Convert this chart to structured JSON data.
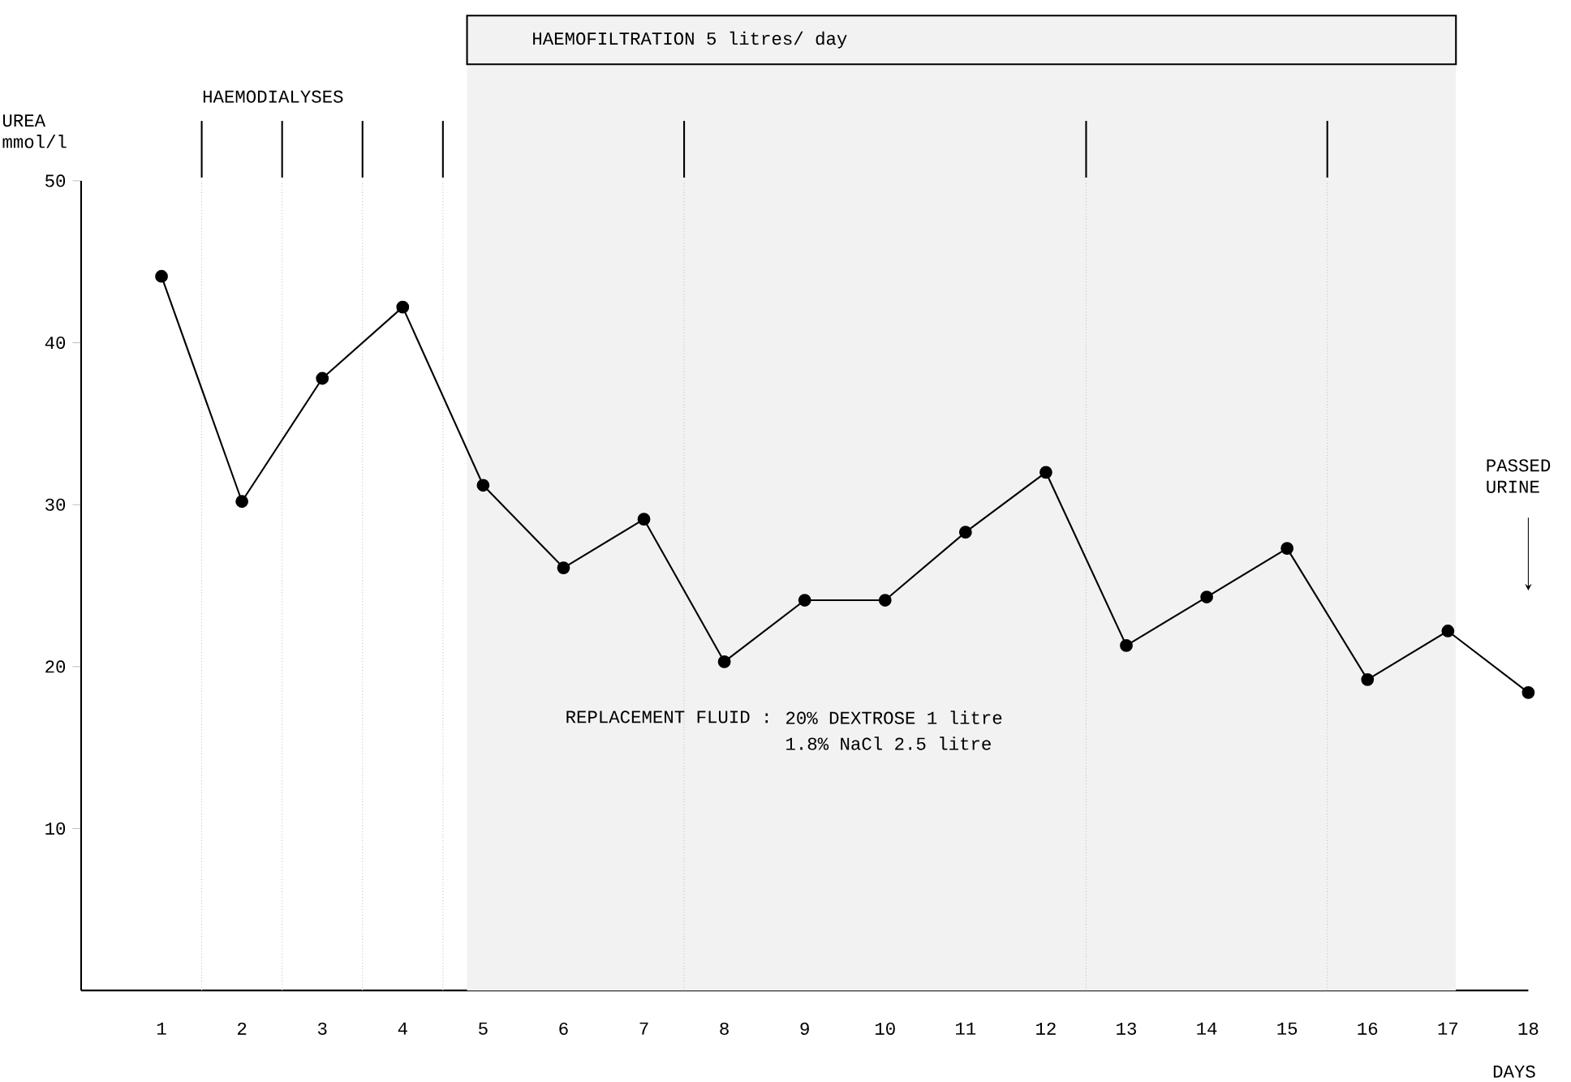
{
  "chart_data": {
    "type": "line",
    "xlabel": "DAYS",
    "ylabel": "UREA mmol/l",
    "x": [
      1,
      2,
      3,
      4,
      5,
      6,
      7,
      8,
      9,
      10,
      11,
      12,
      13,
      14,
      15,
      16,
      17,
      18
    ],
    "series": [
      {
        "color": "#000000",
        "values": [
          44.1,
          30.2,
          37.8,
          42.2,
          31.2,
          26.1,
          29.1,
          20.3,
          24.1,
          24.1,
          28.3,
          32.0,
          21.3,
          24.3,
          27.3,
          19.2,
          22.2,
          18.4
        ]
      }
    ],
    "xlim": [
      0,
      18
    ],
    "xticks": [
      1,
      2,
      3,
      4,
      5,
      6,
      7,
      8,
      9,
      10,
      11,
      12,
      13,
      14,
      15,
      16,
      17,
      18
    ],
    "ylim": [
      0,
      50
    ],
    "yticks": [
      10,
      20,
      30,
      40,
      50
    ],
    "marker": "circle",
    "line_style": "solid",
    "ref_lines": [
      {
        "axis": "x",
        "value": 1.5,
        "label": "HAEMODIALYSES"
      },
      {
        "axis": "x",
        "value": 2.5,
        "label": null
      },
      {
        "axis": "x",
        "value": 3.5,
        "label": null
      },
      {
        "axis": "x",
        "value": 4.5,
        "label": null
      },
      {
        "axis": "x",
        "value": 7.5,
        "label": null
      },
      {
        "axis": "x",
        "value": 12.5,
        "label": null
      },
      {
        "axis": "x",
        "value": 15.5,
        "label": null
      }
    ],
    "bands": [
      {
        "axis": "x",
        "from": 4.8,
        "to": 17.1,
        "label": "HAEMOFILTRATION 5 litres/ day"
      }
    ],
    "annotations": [
      "REPLACEMENT FLUID :",
      "20% DEXTROSE  1 litre",
      "1.8% NaCl   2.5 litre",
      "PASSED URINE"
    ]
  }
}
